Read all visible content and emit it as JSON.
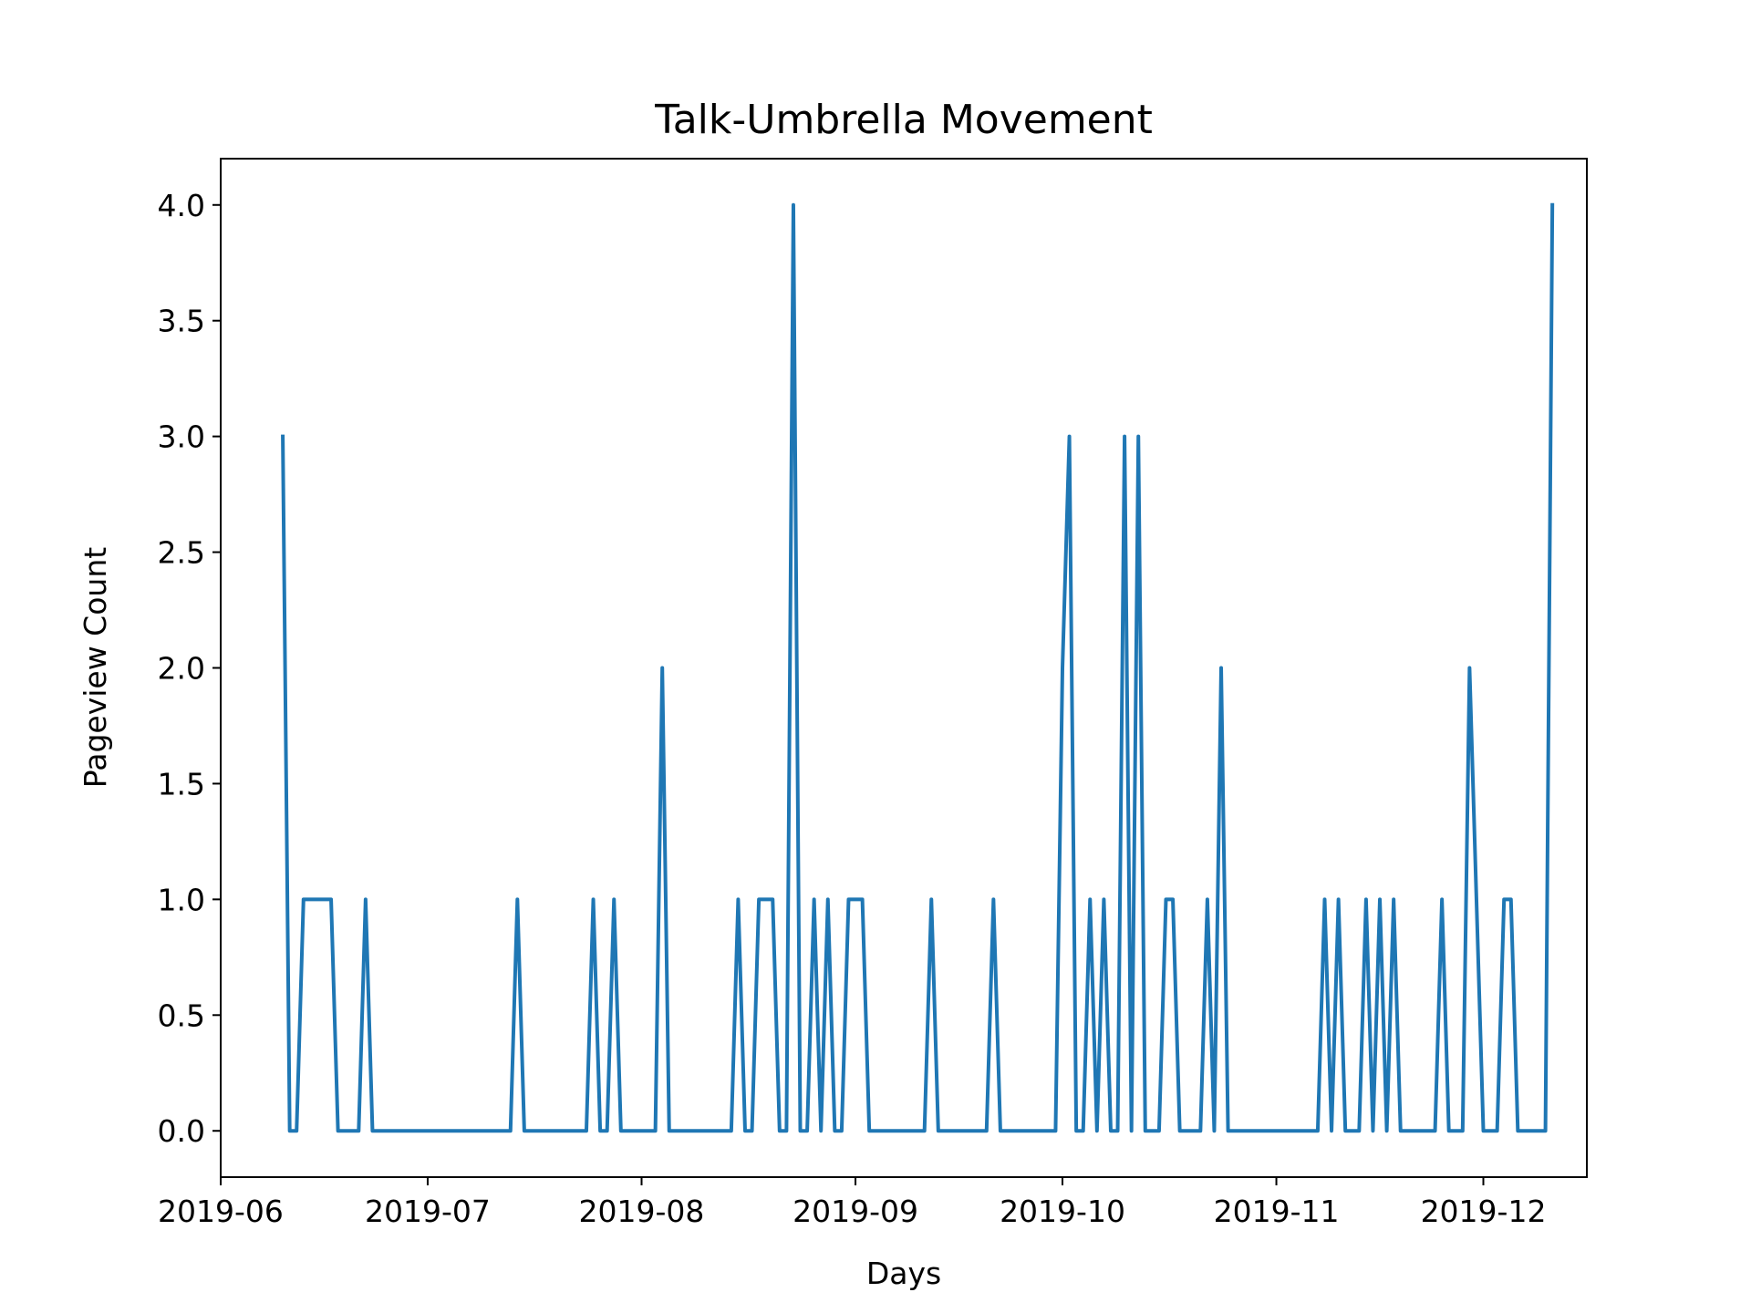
{
  "chart_data": {
    "type": "line",
    "title": "Talk-Umbrella Movement",
    "xlabel": "Days",
    "ylabel": "Pageview Count",
    "xlim": [
      "2019-06-01",
      "2019-12-16"
    ],
    "ylim": [
      -0.2,
      4.2
    ],
    "x_ticks": [
      "2019-06",
      "2019-07",
      "2019-08",
      "2019-09",
      "2019-10",
      "2019-11",
      "2019-12"
    ],
    "y_ticks": [
      "0.0",
      "0.5",
      "1.0",
      "1.5",
      "2.0",
      "2.5",
      "3.0",
      "3.5",
      "4.0"
    ],
    "grid": false,
    "legend": "none",
    "series": [
      {
        "color": "#1f77b4",
        "points": [
          [
            "2019-06-10",
            3
          ],
          [
            "2019-06-11",
            0
          ],
          [
            "2019-06-12",
            0
          ],
          [
            "2019-06-13",
            1
          ],
          [
            "2019-06-14",
            1
          ],
          [
            "2019-06-15",
            1
          ],
          [
            "2019-06-16",
            1
          ],
          [
            "2019-06-17",
            1
          ],
          [
            "2019-06-18",
            0
          ],
          [
            "2019-06-19",
            0
          ],
          [
            "2019-06-20",
            0
          ],
          [
            "2019-06-21",
            0
          ],
          [
            "2019-06-22",
            1
          ],
          [
            "2019-06-23",
            0
          ],
          [
            "2019-06-24",
            0
          ],
          [
            "2019-06-25",
            0
          ],
          [
            "2019-06-26",
            0
          ],
          [
            "2019-06-27",
            0
          ],
          [
            "2019-06-28",
            0
          ],
          [
            "2019-06-29",
            0
          ],
          [
            "2019-06-30",
            0
          ],
          [
            "2019-07-01",
            0
          ],
          [
            "2019-07-02",
            0
          ],
          [
            "2019-07-03",
            0
          ],
          [
            "2019-07-04",
            0
          ],
          [
            "2019-07-05",
            0
          ],
          [
            "2019-07-06",
            0
          ],
          [
            "2019-07-07",
            0
          ],
          [
            "2019-07-08",
            0
          ],
          [
            "2019-07-09",
            0
          ],
          [
            "2019-07-10",
            0
          ],
          [
            "2019-07-11",
            0
          ],
          [
            "2019-07-12",
            0
          ],
          [
            "2019-07-13",
            0
          ],
          [
            "2019-07-14",
            1
          ],
          [
            "2019-07-15",
            0
          ],
          [
            "2019-07-16",
            0
          ],
          [
            "2019-07-17",
            0
          ],
          [
            "2019-07-18",
            0
          ],
          [
            "2019-07-19",
            0
          ],
          [
            "2019-07-20",
            0
          ],
          [
            "2019-07-21",
            0
          ],
          [
            "2019-07-22",
            0
          ],
          [
            "2019-07-23",
            0
          ],
          [
            "2019-07-24",
            0
          ],
          [
            "2019-07-25",
            1
          ],
          [
            "2019-07-26",
            0
          ],
          [
            "2019-07-27",
            0
          ],
          [
            "2019-07-28",
            1
          ],
          [
            "2019-07-29",
            0
          ],
          [
            "2019-07-30",
            0
          ],
          [
            "2019-07-31",
            0
          ],
          [
            "2019-08-01",
            0
          ],
          [
            "2019-08-02",
            0
          ],
          [
            "2019-08-03",
            0
          ],
          [
            "2019-08-04",
            2
          ],
          [
            "2019-08-05",
            0
          ],
          [
            "2019-08-06",
            0
          ],
          [
            "2019-08-07",
            0
          ],
          [
            "2019-08-08",
            0
          ],
          [
            "2019-08-09",
            0
          ],
          [
            "2019-08-10",
            0
          ],
          [
            "2019-08-11",
            0
          ],
          [
            "2019-08-12",
            0
          ],
          [
            "2019-08-13",
            0
          ],
          [
            "2019-08-14",
            0
          ],
          [
            "2019-08-15",
            1
          ],
          [
            "2019-08-16",
            0
          ],
          [
            "2019-08-17",
            0
          ],
          [
            "2019-08-18",
            1
          ],
          [
            "2019-08-19",
            1
          ],
          [
            "2019-08-20",
            1
          ],
          [
            "2019-08-21",
            0
          ],
          [
            "2019-08-22",
            0
          ],
          [
            "2019-08-23",
            4
          ],
          [
            "2019-08-24",
            0
          ],
          [
            "2019-08-25",
            0
          ],
          [
            "2019-08-26",
            1
          ],
          [
            "2019-08-27",
            0
          ],
          [
            "2019-08-28",
            1
          ],
          [
            "2019-08-29",
            0
          ],
          [
            "2019-08-30",
            0
          ],
          [
            "2019-08-31",
            1
          ],
          [
            "2019-09-01",
            1
          ],
          [
            "2019-09-02",
            1
          ],
          [
            "2019-09-03",
            0
          ],
          [
            "2019-09-04",
            0
          ],
          [
            "2019-09-05",
            0
          ],
          [
            "2019-09-06",
            0
          ],
          [
            "2019-09-07",
            0
          ],
          [
            "2019-09-08",
            0
          ],
          [
            "2019-09-09",
            0
          ],
          [
            "2019-09-10",
            0
          ],
          [
            "2019-09-11",
            0
          ],
          [
            "2019-09-12",
            1
          ],
          [
            "2019-09-13",
            0
          ],
          [
            "2019-09-14",
            0
          ],
          [
            "2019-09-15",
            0
          ],
          [
            "2019-09-16",
            0
          ],
          [
            "2019-09-17",
            0
          ],
          [
            "2019-09-18",
            0
          ],
          [
            "2019-09-19",
            0
          ],
          [
            "2019-09-20",
            0
          ],
          [
            "2019-09-21",
            1
          ],
          [
            "2019-09-22",
            0
          ],
          [
            "2019-09-23",
            0
          ],
          [
            "2019-09-24",
            0
          ],
          [
            "2019-09-25",
            0
          ],
          [
            "2019-09-26",
            0
          ],
          [
            "2019-09-27",
            0
          ],
          [
            "2019-09-28",
            0
          ],
          [
            "2019-09-29",
            0
          ],
          [
            "2019-09-30",
            0
          ],
          [
            "2019-10-01",
            2
          ],
          [
            "2019-10-02",
            3
          ],
          [
            "2019-10-03",
            0
          ],
          [
            "2019-10-04",
            0
          ],
          [
            "2019-10-05",
            1
          ],
          [
            "2019-10-06",
            0
          ],
          [
            "2019-10-07",
            1
          ],
          [
            "2019-10-08",
            0
          ],
          [
            "2019-10-09",
            0
          ],
          [
            "2019-10-10",
            3
          ],
          [
            "2019-10-11",
            0
          ],
          [
            "2019-10-12",
            3
          ],
          [
            "2019-10-13",
            0
          ],
          [
            "2019-10-14",
            0
          ],
          [
            "2019-10-15",
            0
          ],
          [
            "2019-10-16",
            1
          ],
          [
            "2019-10-17",
            1
          ],
          [
            "2019-10-18",
            0
          ],
          [
            "2019-10-19",
            0
          ],
          [
            "2019-10-20",
            0
          ],
          [
            "2019-10-21",
            0
          ],
          [
            "2019-10-22",
            1
          ],
          [
            "2019-10-23",
            0
          ],
          [
            "2019-10-24",
            2
          ],
          [
            "2019-10-25",
            0
          ],
          [
            "2019-10-26",
            0
          ],
          [
            "2019-10-27",
            0
          ],
          [
            "2019-10-28",
            0
          ],
          [
            "2019-10-29",
            0
          ],
          [
            "2019-10-30",
            0
          ],
          [
            "2019-10-31",
            0
          ],
          [
            "2019-11-01",
            0
          ],
          [
            "2019-11-02",
            0
          ],
          [
            "2019-11-03",
            0
          ],
          [
            "2019-11-04",
            0
          ],
          [
            "2019-11-05",
            0
          ],
          [
            "2019-11-06",
            0
          ],
          [
            "2019-11-07",
            0
          ],
          [
            "2019-11-08",
            1
          ],
          [
            "2019-11-09",
            0
          ],
          [
            "2019-11-10",
            1
          ],
          [
            "2019-11-11",
            0
          ],
          [
            "2019-11-12",
            0
          ],
          [
            "2019-11-13",
            0
          ],
          [
            "2019-11-14",
            1
          ],
          [
            "2019-11-15",
            0
          ],
          [
            "2019-11-16",
            1
          ],
          [
            "2019-11-17",
            0
          ],
          [
            "2019-11-18",
            1
          ],
          [
            "2019-11-19",
            0
          ],
          [
            "2019-11-20",
            0
          ],
          [
            "2019-11-21",
            0
          ],
          [
            "2019-11-22",
            0
          ],
          [
            "2019-11-23",
            0
          ],
          [
            "2019-11-24",
            0
          ],
          [
            "2019-11-25",
            1
          ],
          [
            "2019-11-26",
            0
          ],
          [
            "2019-11-27",
            0
          ],
          [
            "2019-11-28",
            0
          ],
          [
            "2019-11-29",
            2
          ],
          [
            "2019-11-30",
            1
          ],
          [
            "2019-12-01",
            0
          ],
          [
            "2019-12-02",
            0
          ],
          [
            "2019-12-03",
            0
          ],
          [
            "2019-12-04",
            1
          ],
          [
            "2019-12-05",
            1
          ],
          [
            "2019-12-06",
            0
          ],
          [
            "2019-12-07",
            0
          ],
          [
            "2019-12-08",
            0
          ],
          [
            "2019-12-09",
            0
          ],
          [
            "2019-12-10",
            0
          ],
          [
            "2019-12-11",
            4
          ]
        ]
      }
    ]
  }
}
